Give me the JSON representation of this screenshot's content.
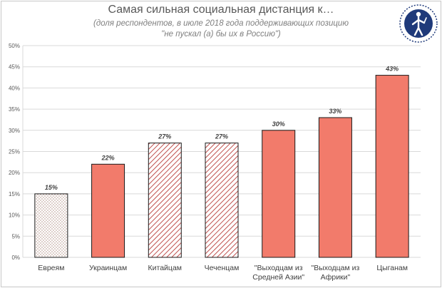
{
  "header": {
    "title": "Самая сильная социальная дистанция к…",
    "subtitle_line1": "(доля респондентов, в июле 2018 года поддерживающих позицию",
    "subtitle_line2": "\"не пускал (а) бы их в Россию\")"
  },
  "colors": {
    "accent": "#f27b6b",
    "accent_stroke": "#1a1a1a",
    "hatch": "#c0504d",
    "dots": "#8a5a4a",
    "grid": "#d9d9d9",
    "logo": "#1f3a7a"
  },
  "icons": {
    "logo": "university-logo-icon"
  },
  "chart_data": {
    "type": "bar",
    "categories": [
      [
        "Евреям"
      ],
      [
        "Украинцам"
      ],
      [
        "Китайцам"
      ],
      [
        "Чеченцам"
      ],
      [
        "\"Выходцам из",
        "Средней Азии\""
      ],
      [
        "\"Выходцам из",
        "Африки\""
      ],
      [
        "Цыганам"
      ]
    ],
    "values": [
      15,
      22,
      27,
      27,
      30,
      33,
      43
    ],
    "value_labels": [
      "15%",
      "22%",
      "27%",
      "27%",
      "30%",
      "33%",
      "43%"
    ],
    "fills": [
      "dots",
      "solid",
      "hatch",
      "hatch",
      "solid",
      "solid",
      "solid"
    ],
    "ylim": [
      0,
      50
    ],
    "yticks": [
      "0%",
      "5%",
      "10%",
      "15%",
      "20%",
      "25%",
      "30%",
      "35%",
      "40%",
      "45%",
      "50%"
    ],
    "grid": true,
    "legend": "none"
  }
}
